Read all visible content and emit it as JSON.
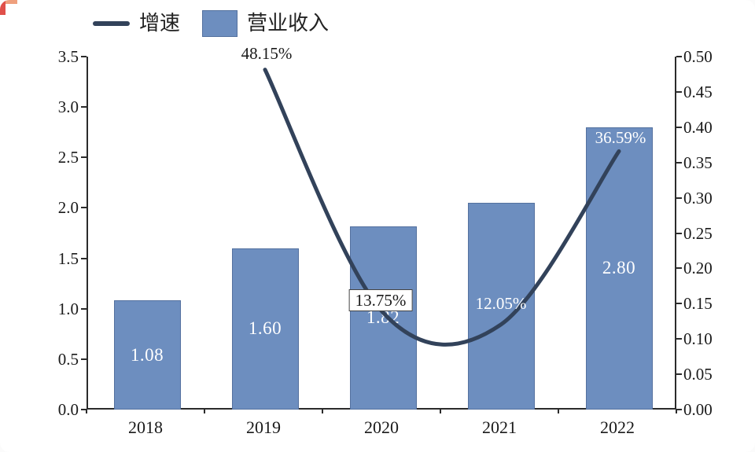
{
  "canvas": {
    "background": "#ffffff"
  },
  "corner_mark": {
    "vertical_color": "#e0504a",
    "horizontal_color": "#efa07d"
  },
  "legend": {
    "items": [
      {
        "label": "增速",
        "swatch": "line",
        "color": "#32425a"
      },
      {
        "label": "营业收入",
        "swatch": "square",
        "color": "#6d8ebf",
        "border_color": "#54719f"
      }
    ]
  },
  "chart_data": {
    "type": "combo-bar-line",
    "categories": [
      "2018",
      "2019",
      "2020",
      "2021",
      "2022"
    ],
    "series": [
      {
        "name": "营业收入",
        "type": "bar",
        "axis": "left",
        "color": "#6d8ebf",
        "border_color": "#54719f",
        "values": [
          1.08,
          1.6,
          1.82,
          2.05,
          2.8
        ],
        "value_labels": [
          "1.08",
          "1.60",
          "1.82",
          null,
          "2.80"
        ],
        "value_label_color": "#ffffff"
      },
      {
        "name": "增速",
        "type": "line",
        "axis": "right",
        "color": "#32425a",
        "smooth": true,
        "stroke_width": 5,
        "values": [
          null,
          0.4815,
          0.1375,
          0.1205,
          0.3659
        ],
        "point_labels": [
          null,
          "48.15%",
          "13.75%",
          "12.05%",
          "36.59%"
        ],
        "point_label_styles": [
          null,
          {
            "color": "#1a1a1a",
            "boxed": false,
            "dx": 2,
            "dy": -8
          },
          {
            "color": "#1a1a1a",
            "boxed": true,
            "dx": -3,
            "dy": -2
          },
          {
            "color": "#ffffff",
            "boxed": false,
            "dx": 0,
            "dy": -14
          },
          {
            "color": "#ffffff",
            "boxed": false,
            "dx": 2,
            "dy": -4
          }
        ]
      }
    ],
    "left_axis": {
      "min": 0,
      "max": 3.5,
      "step": 0.5,
      "tick_labels": [
        "0.0",
        "0.5",
        "1.0",
        "1.5",
        "2.0",
        "2.5",
        "3.0",
        "3.5"
      ]
    },
    "right_axis": {
      "min": 0,
      "max": 0.5,
      "step": 0.05,
      "tick_labels": [
        "0.00",
        "0.05",
        "0.10",
        "0.15",
        "0.20",
        "0.25",
        "0.30",
        "0.35",
        "0.40",
        "0.45",
        "0.50"
      ]
    },
    "grid": false,
    "legend_position": "top-left"
  }
}
